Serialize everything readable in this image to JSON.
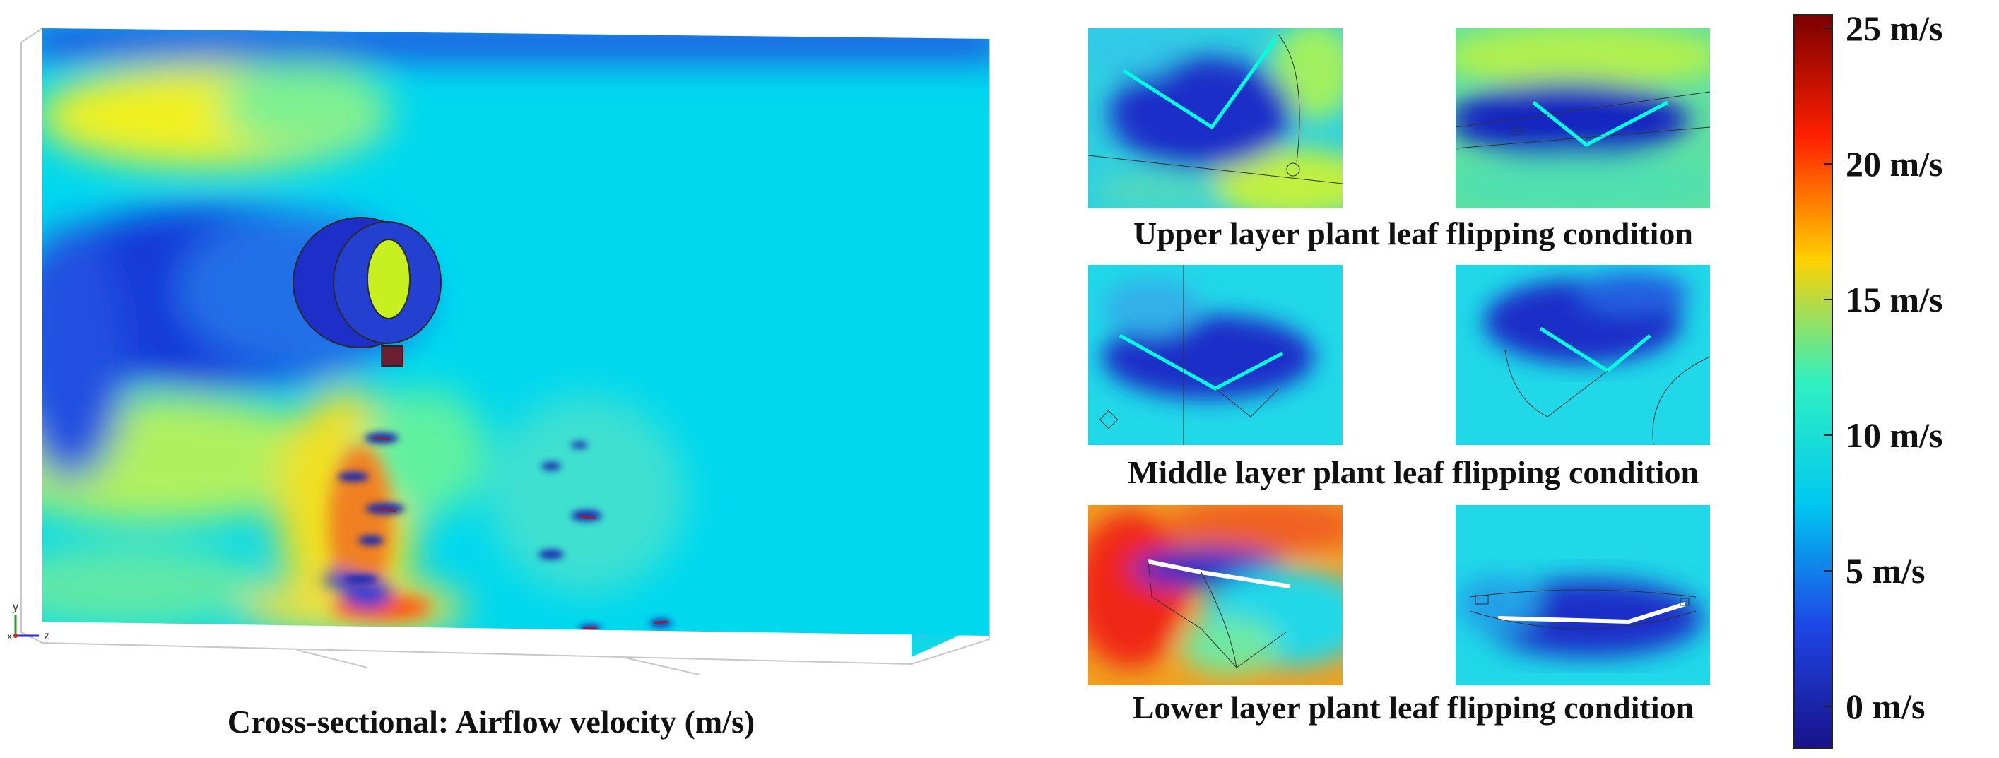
{
  "figure": {
    "main_caption": "Cross-sectional: Airflow velocity (m/s)",
    "row_captions": [
      "Upper layer plant leaf flipping condition",
      "Middle layer plant leaf flipping condition",
      "Lower layer plant leaf flipping condition"
    ],
    "axes_labels": {
      "y": "y",
      "z": "z",
      "x": "x"
    }
  },
  "colorbar": {
    "ticks": [
      "25 m/s",
      "20 m/s",
      "15 m/s",
      "10 m/s",
      "5 m/s",
      "0 m/s"
    ],
    "colors": [
      "#7a0000",
      "#ff2000",
      "#ffd000",
      "#30f0c0",
      "#00c8f0",
      "#1e46e6",
      "#18128a"
    ]
  }
}
